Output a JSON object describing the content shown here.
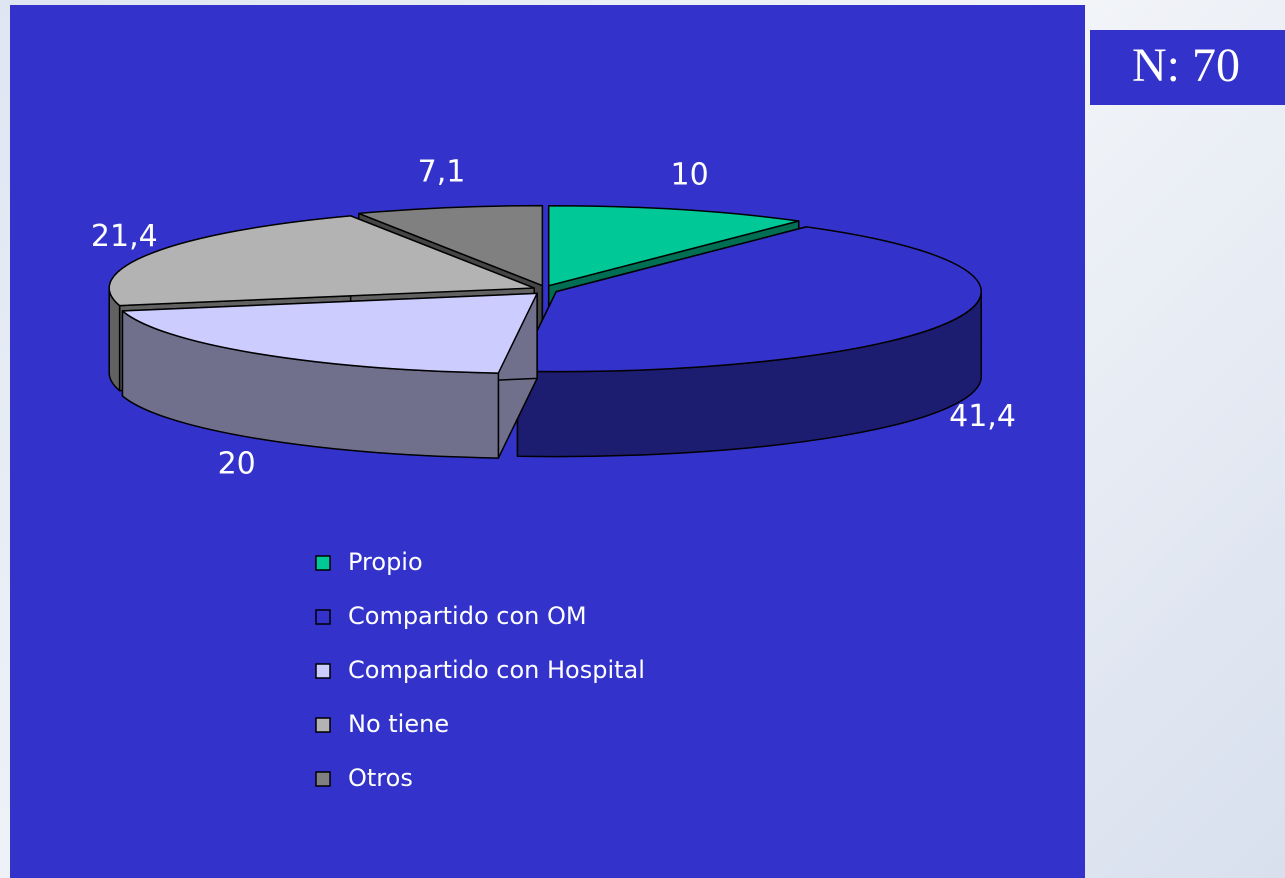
{
  "chart_data": {
    "type": "pie3d",
    "annotation": "N: 70",
    "categories": [
      "Propio",
      "Compartido con OM",
      "Compartido con Hospital",
      "No tiene",
      "Otros"
    ],
    "values": [
      10,
      41.4,
      20,
      21.4,
      7.1
    ],
    "value_labels": [
      "10",
      "41,4",
      "20",
      "21,4",
      "7,1"
    ],
    "colors": [
      "#00c896",
      "#3333cc",
      "#ccccff",
      "#b3b3b3",
      "#808080"
    ],
    "legend": "bottom"
  }
}
